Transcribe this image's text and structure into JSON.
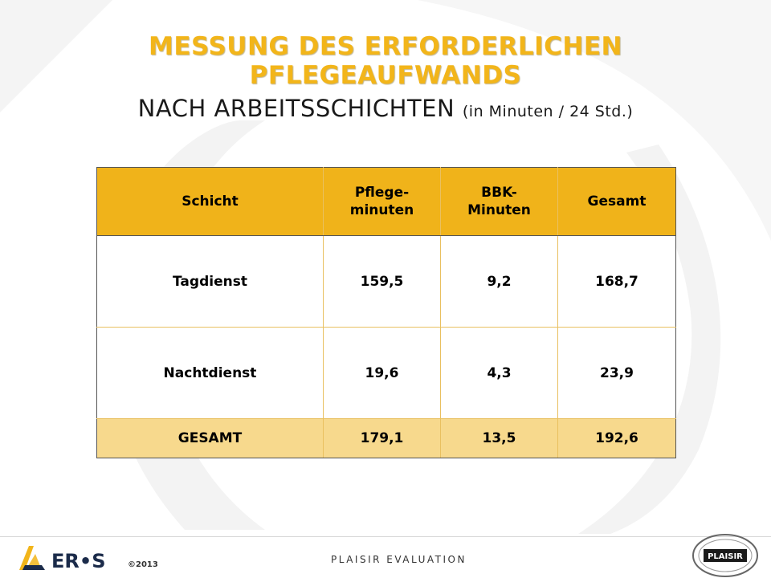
{
  "title": {
    "main_line1": "MESSUNG DES ERFORDERLICHEN",
    "main_line2": "PFLEGEAUFWANDS",
    "sub": "NACH ARBEITSSCHICHTEN",
    "sub_paren": "(in Minuten / 24 Std.)"
  },
  "table": {
    "headers": [
      "Schicht",
      "Pflege-\nminuten",
      "BBK-\nMinuten",
      "Gesamt"
    ],
    "rows": [
      [
        "Tagdienst",
        "159,5",
        "9,2",
        "168,7"
      ],
      [
        "Nachtdienst",
        "19,6",
        "4,3",
        "23,9"
      ]
    ],
    "total": [
      "GESAMT",
      "179,1",
      "13,5",
      "192,6"
    ]
  },
  "footer": {
    "logo_text": "ER•S",
    "copyright": "©2013",
    "center_text": "PLAISIR EVALUATION",
    "seal_text": "PLAISIR",
    "seal_ring_text": "PLANIFICATION INFORMATISÉE DES SOINS INFIRMIERS REQUIS"
  },
  "colors": {
    "accent": "#f2b51a",
    "header_fill": "#f0b31a",
    "total_fill": "#f7d98d",
    "watermark": "#f3f3f3"
  }
}
